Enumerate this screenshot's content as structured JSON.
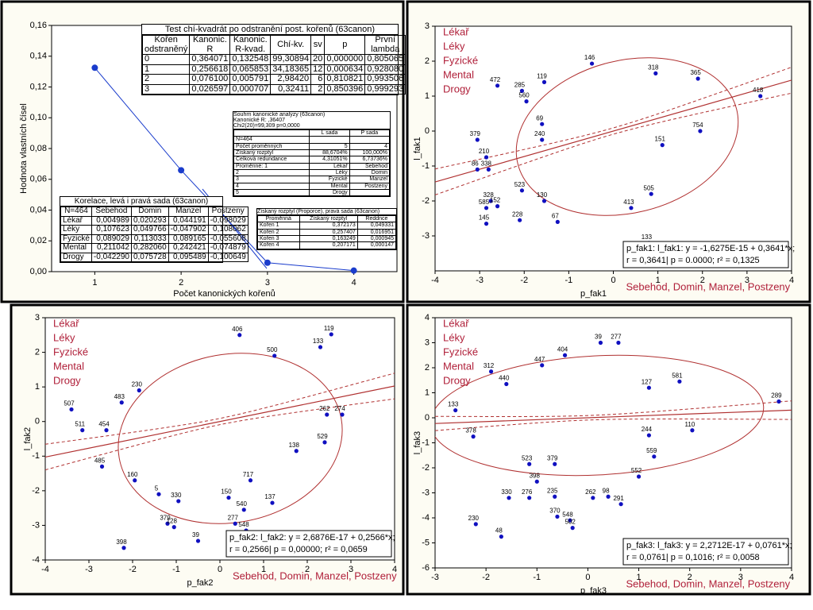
{
  "chart_data": [
    {
      "type": "line",
      "ylabel": "Hodnota vlastních čísel",
      "xlabel": "Počet kanonických kořenů",
      "x": [
        1,
        2,
        3,
        4
      ],
      "values": [
        0.1325,
        0.0659,
        0.0058,
        0.0007
      ],
      "color": "#1a3ccc",
      "xlim": [
        0.5,
        4.5
      ],
      "xticks": [
        1,
        2,
        3,
        4
      ],
      "ylim": [
        0,
        0.16
      ],
      "yticks": [
        {
          "value": 0,
          "label": "0,00"
        },
        {
          "value": 0.02,
          "label": "0,02"
        },
        {
          "value": 0.04,
          "label": "0,04"
        },
        {
          "value": 0.06,
          "label": "0,06"
        },
        {
          "value": 0.08,
          "label": "0,08"
        },
        {
          "value": 0.1,
          "label": "0,10"
        },
        {
          "value": 0.12,
          "label": "0,12"
        },
        {
          "value": 0.14,
          "label": "0,14"
        },
        {
          "value": 0.16,
          "label": "0,16"
        }
      ]
    },
    {
      "type": "scatter",
      "xlabel": "p_fak1",
      "x_variables": "Sebehod, Domin, Manzel, Postzeny",
      "ylabel": "l_fak1",
      "y_variables": [
        "Lékař",
        "Léky",
        "Fyzické",
        "Mental",
        "Drogy"
      ],
      "fit_text": [
        "p_fak1:  l_fak1:   y = -1,6275E-15 + 0,3641*x;",
        "r = 0,3641| p = 0.0000; r² = 0,1325"
      ],
      "fit": {
        "intercept": -1.6275e-15,
        "slope": 0.3641
      },
      "color": "#1010c0",
      "line_color": "#b03030",
      "xlim": [
        -4,
        4
      ],
      "xticks": [
        -4,
        -3,
        -2,
        -1,
        0,
        1,
        2,
        3,
        4
      ],
      "ylim": [
        -4,
        3
      ],
      "yticks": [
        -3,
        -2,
        -1,
        0,
        1,
        2,
        3
      ],
      "x": [
        -0.48,
        -2.6,
        -1.55,
        -2.05,
        -1.95,
        -3.05,
        -2.85,
        -3.05,
        -2.8,
        -2.75,
        -2.85,
        -2.6,
        -2.85,
        -2.1,
        0.8,
        3.3,
        1.9,
        1.95,
        1.1,
        0.4,
        -1.25,
        -1.55,
        -2.05,
        -1.6,
        -1.6,
        0.95,
        0.85
      ],
      "y": [
        1.93,
        1.3,
        1.4,
        1.15,
        0.85,
        -0.25,
        -0.75,
        -1.1,
        -1.1,
        -2.0,
        -2.2,
        -2.15,
        -2.65,
        -2.55,
        -3.2,
        1.0,
        1.5,
        0,
        -0.4,
        -2.2,
        -2.6,
        -2.0,
        -1.7,
        -0.25,
        0.2,
        1.65,
        -1.8
      ],
      "labels": [
        "146",
        "472",
        "119",
        "285",
        "560",
        "379",
        "210",
        "86",
        "338",
        "328",
        "585",
        "152",
        "145",
        "228",
        "133",
        "418",
        "365",
        "754",
        "151",
        "413",
        "67",
        "130",
        "523",
        "240",
        "69",
        "318",
        "505"
      ]
    },
    {
      "type": "scatter",
      "xlabel": "p_fak2",
      "x_variables": "Sebehod, Domin, Manzel, Postzeny",
      "ylabel": "l_fak2",
      "y_variables": [
        "Lékař",
        "Léky",
        "Fyzické",
        "Mental",
        "Drogy"
      ],
      "fit_text": [
        "p_fak2:  l_fak2:   y = 2,6876E-17 + 0,2566*x;",
        "r = 0,2566| p = 0,00000; r² = 0,0659"
      ],
      "fit": {
        "intercept": 2.6876e-17,
        "slope": 0.2566
      },
      "color": "#1010c0",
      "line_color": "#b03030",
      "xlim": [
        -4,
        4
      ],
      "xticks": [
        -4,
        -3,
        -2,
        -1,
        0,
        1,
        2,
        3,
        4
      ],
      "ylim": [
        -4,
        3
      ],
      "yticks": [
        -4,
        -3,
        -2,
        -1,
        0,
        1,
        2,
        3
      ],
      "x": [
        2.55,
        2.3,
        2.8,
        2.45,
        2.4,
        -3.4,
        -3.15,
        -2.6,
        -2.25,
        -2.2,
        -0.5,
        1.2,
        0.6,
        0.35,
        0.55,
        -0.95,
        -1.95,
        -1.4,
        -1.2,
        -1.05,
        0.45,
        1.25,
        0.7,
        1.75,
        -2.7,
        -1.85,
        0.2
      ],
      "y": [
        2.52,
        2.15,
        0.2,
        0.2,
        -0.6,
        0.35,
        -0.25,
        -0.25,
        0.55,
        -3.65,
        -3.45,
        -2.35,
        -3.15,
        -2.95,
        -2.55,
        -2.3,
        -1.7,
        -2.1,
        -2.95,
        -3.05,
        2.5,
        1.9,
        -1.7,
        -0.85,
        -1.3,
        0.9,
        -2.2
      ],
      "labels": [
        "119",
        "133",
        "274",
        "262",
        "529",
        "507",
        "511",
        "454",
        "483",
        "398",
        "39",
        "137",
        "548",
        "277",
        "540",
        "330",
        "160",
        "5",
        "379",
        "128",
        "406",
        "500",
        "717",
        "138",
        "485",
        "230",
        "150"
      ]
    },
    {
      "type": "scatter",
      "xlabel": "p_fak3",
      "x_variables": "Sebehod, Domin, Manzel, Postzeny",
      "ylabel": "l_fak3",
      "y_variables": [
        "Lékař",
        "Léky",
        "Fyzické",
        "Mental",
        "Drogy"
      ],
      "fit_text": [
        "p_fak3:  l_fak3:   y = 2,2712E-17 + 0,0761*x;",
        "r = 0,0761| p = 0,1016; r² = 0,0058"
      ],
      "fit": {
        "intercept": 2.2712e-17,
        "slope": 0.0761
      },
      "color": "#1010c0",
      "line_color": "#b03030",
      "xlim": [
        -3,
        4
      ],
      "xticks": [
        -3,
        -2,
        -1,
        0,
        1,
        2,
        3,
        4
      ],
      "ylim": [
        -6,
        4
      ],
      "yticks": [
        -6,
        -5,
        -4,
        -3,
        -2,
        -1,
        0,
        1,
        2,
        3,
        4
      ],
      "x": [
        0.25,
        0.6,
        -0.45,
        -1.9,
        -0.9,
        1.8,
        3.75,
        -2.6,
        -1.0,
        -1.55,
        -1.15,
        -0.65,
        0.1,
        0.4,
        0.65,
        1.0,
        -0.6,
        -0.35,
        -0.3,
        -2.2,
        -1.7,
        2.05,
        -2.25,
        -1.15,
        -0.65,
        1.3,
        1.2,
        1.2,
        -1.6
      ],
      "y": [
        3.0,
        3.0,
        2.5,
        1.85,
        2.1,
        1.45,
        0.65,
        0.3,
        -2.55,
        -3.2,
        -3.2,
        -3.15,
        -3.2,
        -3.15,
        -3.45,
        -2.35,
        -3.95,
        -4.1,
        -4.4,
        -4.25,
        -4.75,
        -0.5,
        -0.75,
        -1.85,
        -1.85,
        -1.55,
        -0.7,
        1.2,
        1.35
      ],
      "labels": [
        "39",
        "277",
        "404",
        "312",
        "447",
        "581",
        "289",
        "133",
        "398",
        "330",
        "276",
        "235",
        "262",
        "98",
        "291",
        "552",
        "370",
        "548",
        "502",
        "230",
        "48",
        "110",
        "378",
        "523",
        "379",
        "559",
        "244",
        "127",
        "440"
      ]
    }
  ],
  "tables": [
    {
      "title": [
        "Test chí-kvadrát po odstranění post. kořenů (63canon)"
      ],
      "header": [
        "Kořen odstraněný",
        "Kanonic. R",
        "Kanonic. R-kvad.",
        "Chí-kv.",
        "sv",
        "p",
        "První lambda"
      ],
      "rows": [
        [
          "0",
          "0,364071",
          "0,132548",
          "99,30894",
          "20",
          "0,000000",
          "0,805065"
        ],
        [
          "1",
          "0,256618",
          "0,065853",
          "34,18365",
          "12",
          "0,000634",
          "0,928080"
        ],
        [
          "2",
          "0,076100",
          "0,005791",
          "2,98420",
          "6",
          "0,810821",
          "0,993506"
        ],
        [
          "3",
          "0,026597",
          "0,000707",
          "0,32411",
          "2",
          "0,850396",
          "0,999293"
        ]
      ]
    },
    {
      "title": [
        "Korelace, levá i pravá sada (63canon)"
      ],
      "header": [
        "N=464",
        "Sebehod",
        "Domin",
        "Manzel",
        "Postzeny"
      ],
      "rows": [
        [
          "Lékař",
          "0,004989",
          "0,020293",
          "0,044191",
          "-0,098029"
        ],
        [
          "Léky",
          "0,107623",
          "0,049766",
          "-0,047902",
          "0,108062"
        ],
        [
          "Fyzické",
          "0,089029",
          "0,113033",
          "0,089165",
          "-0,055608"
        ],
        [
          "Mental",
          "0,211042",
          "0,282060",
          "0,242421",
          "-0,074879"
        ],
        [
          "Drogy",
          "-0,042290",
          "0,075728",
          "0,095489",
          "-0,100649"
        ]
      ]
    },
    {
      "title": [
        "Souhrn kanonické analýzy (63canon)",
        "Kanonické R: ,36407",
        "Chi2(20)=99,309 p=0,0000"
      ],
      "header": [
        "L sada",
        "P sada"
      ],
      "rows": [
        [
          "N=464"
        ],
        [
          "Počet proměnných",
          "5",
          "4"
        ],
        [
          "Získaný rozptyl",
          "88,6704%",
          "100,000%"
        ],
        [
          "Celková redundance",
          "4,31051%",
          "6,73736%"
        ],
        [
          "Proměnné:  1",
          "Lékař",
          "Sebehod"
        ],
        [
          "2",
          "Léky",
          "Domin"
        ],
        [
          "3",
          "Fyzické",
          "Manzel"
        ],
        [
          "4",
          "Mental",
          "Postzeny"
        ],
        [
          "5",
          "Drogy"
        ]
      ]
    },
    {
      "title": [
        "Získaný rozptyl (Proporce), pravá sada (63canon)"
      ],
      "header": [
        "Proměnná",
        "Získaný rozptyl",
        "Reddnce"
      ],
      "rows": [
        [
          "Kořen 1",
          "0,372173",
          "0,049331"
        ],
        [
          "Kořen 2",
          "0,257407",
          "0,016951"
        ],
        [
          "Kořen 3",
          "0,163249",
          "0,000945"
        ],
        [
          "Kořen 4",
          "0,207171",
          "0,000147"
        ]
      ]
    }
  ]
}
